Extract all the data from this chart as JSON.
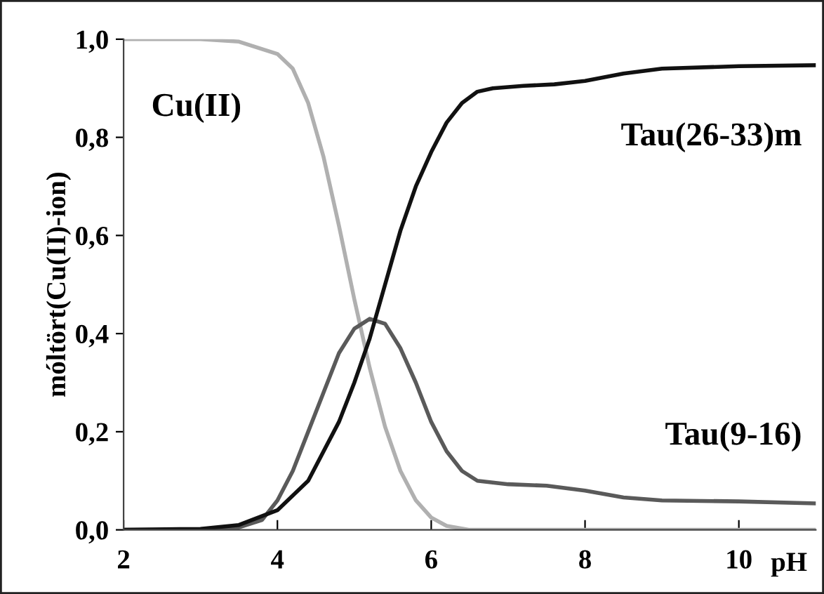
{
  "chart_data": {
    "type": "line",
    "xlabel": "pH",
    "ylabel": "móltört(Cu(II)-ion)",
    "xlim": [
      2,
      11
    ],
    "ylim": [
      0,
      1
    ],
    "xticks": [
      2,
      4,
      6,
      8,
      10
    ],
    "yticks": [
      {
        "value": 0,
        "label": "0,0"
      },
      {
        "value": 0.2,
        "label": "0,2"
      },
      {
        "value": 0.4,
        "label": "0,4"
      },
      {
        "value": 0.6,
        "label": "0,6"
      },
      {
        "value": 0.8,
        "label": "0,8"
      },
      {
        "value": 1,
        "label": "1,0"
      }
    ],
    "grid": false,
    "legend": false,
    "marker": "none",
    "line_style": "solid",
    "series": [
      {
        "name": "Cu(II)",
        "color": "#b0b0b0",
        "x": [
          2,
          3,
          3.5,
          4,
          4.2,
          4.4,
          4.6,
          4.8,
          5.0,
          5.2,
          5.4,
          5.6,
          5.8,
          6.0,
          6.2,
          6.5,
          11
        ],
        "values": [
          1.0,
          1.0,
          0.995,
          0.97,
          0.94,
          0.87,
          0.76,
          0.62,
          0.47,
          0.33,
          0.21,
          0.12,
          0.06,
          0.025,
          0.008,
          0.0,
          0.0
        ]
      },
      {
        "name": "Tau(9-16)",
        "color": "#5a5a5a",
        "x": [
          2,
          3,
          3.5,
          3.8,
          4.0,
          4.2,
          4.4,
          4.6,
          4.8,
          5.0,
          5.2,
          5.4,
          5.6,
          5.8,
          6.0,
          6.2,
          6.4,
          6.6,
          7.0,
          7.5,
          8,
          8.5,
          9,
          10,
          11
        ],
        "values": [
          0,
          0,
          0.005,
          0.02,
          0.06,
          0.12,
          0.2,
          0.28,
          0.36,
          0.41,
          0.43,
          0.42,
          0.37,
          0.3,
          0.22,
          0.16,
          0.12,
          0.1,
          0.093,
          0.09,
          0.08,
          0.066,
          0.06,
          0.058,
          0.054
        ]
      },
      {
        "name": "Tau(26-33)m",
        "color": "#111111",
        "x": [
          2,
          3,
          3.5,
          4.0,
          4.4,
          4.8,
          5.0,
          5.2,
          5.4,
          5.6,
          5.8,
          6.0,
          6.2,
          6.4,
          6.6,
          6.8,
          7.2,
          7.6,
          8.0,
          8.5,
          9,
          10,
          11
        ],
        "values": [
          0,
          0.002,
          0.01,
          0.04,
          0.1,
          0.22,
          0.3,
          0.39,
          0.5,
          0.61,
          0.7,
          0.77,
          0.83,
          0.87,
          0.893,
          0.9,
          0.905,
          0.908,
          0.915,
          0.93,
          0.94,
          0.945,
          0.947
        ]
      }
    ]
  }
}
